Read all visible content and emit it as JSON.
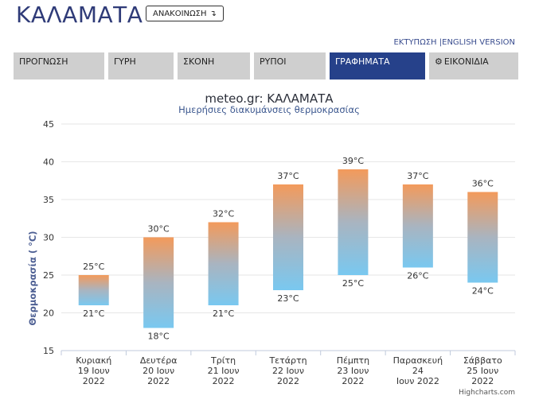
{
  "header": {
    "city": "ΚΑΛΑΜΑΤΑ",
    "announce_label": "ΑΝΑΚΟΙΝΩΣΗ",
    "print_link": "ΕΚΤΥΠΩΣΗ",
    "separator": "|",
    "english_link": "ENGLISH VERSION"
  },
  "tabs": [
    {
      "label": "ΠΡΟΓΝΩΣΗ",
      "active": false
    },
    {
      "label": "ΓΥΡΗ",
      "active": false
    },
    {
      "label": "ΣΚΟΝΗ",
      "active": false
    },
    {
      "label": "ΡΥΠΟΙ",
      "active": false
    },
    {
      "label": "ΓΡΑΦΗΜΑΤΑ",
      "active": true
    },
    {
      "label": "ΕΙΚΟΝΙΔΙΑ",
      "active": false,
      "icon": "gear-icon"
    }
  ],
  "chart_data": {
    "type": "bar",
    "title": "meteo.gr: ΚΑΛΑΜΑΤΑ",
    "subtitle": "Ημερήσιες διακυμάνσεις θερμοκρασίας",
    "ylabel": "Θερμοκρασία ( °C)",
    "ylim": [
      15,
      45
    ],
    "yticks": [
      15,
      20,
      25,
      30,
      35,
      40,
      45
    ],
    "grid": true,
    "unit": "°C",
    "categories": [
      [
        "Κυριακή",
        "19 Ιουν",
        "2022"
      ],
      [
        "Δευτέρα",
        "20 Ιουν",
        "2022"
      ],
      [
        "Τρίτη",
        "21 Ιουν",
        "2022"
      ],
      [
        "Τετάρτη",
        "22 Ιουν",
        "2022"
      ],
      [
        "Πέμπτη",
        "23 Ιουν",
        "2022"
      ],
      [
        "Παρασκευή",
        "24",
        "Ιουν 2022"
      ],
      [
        "Σάββατο",
        "25 Ιουν",
        "2022"
      ]
    ],
    "low": [
      21,
      18,
      21,
      23,
      25,
      26,
      24
    ],
    "high": [
      25,
      30,
      32,
      37,
      39,
      37,
      36
    ],
    "colors": {
      "high": "#f39a5b",
      "mid": "#a9b4c0",
      "low": "#79c8f0"
    },
    "credit": "Highcharts.com"
  }
}
